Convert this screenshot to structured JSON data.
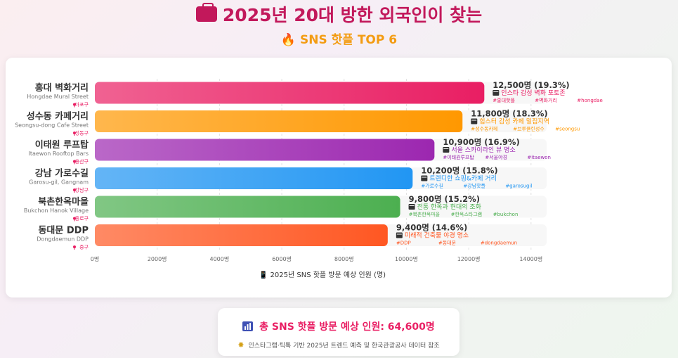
{
  "title": "2025년 20대 방한 외국인이 찾는",
  "subtitle": "SNS 핫플 TOP 6",
  "title_icon": "briefcase-icon",
  "subtitle_icon": "fire-icon",
  "summary": {
    "total_label": "총 SNS 핫플 방문 예상 인원: 64,600명",
    "source": "인스타그램·틱톡 기반 2025년 트렌드 예측 및 한국관광공사 데이터 참조"
  },
  "chart_data": {
    "type": "bar",
    "orientation": "horizontal",
    "xlabel": "2025년 SNS 핫플 방문 예상 인원 (명)",
    "xlim": [
      0,
      14500
    ],
    "xticks": [
      0,
      2000,
      4000,
      6000,
      8000,
      10000,
      12000,
      14000
    ],
    "xtick_labels": [
      "0명",
      "2000명",
      "4000명",
      "6000명",
      "8000명",
      "10000명",
      "12000명",
      "14000명"
    ],
    "grid": true,
    "items": [
      {
        "name": "홍대 벽화거리",
        "en": "Hongdae Mural Street",
        "district": "마포구",
        "value": 12500,
        "value_label": "12,500명 (19.3%)",
        "desc": "인스타 감성 벽화 포토존",
        "tags": [
          "#홍대핫플",
          "#벽화거리",
          "#hongdae"
        ],
        "color": "#e91e63",
        "color2": "#f06292"
      },
      {
        "name": "성수동 카페거리",
        "en": "Seongsu-dong Cafe Street",
        "district": "성동구",
        "value": 11800,
        "value_label": "11,800명 (18.3%)",
        "desc": "힙스터 감성 카페 밀집지역",
        "tags": [
          "#성수동카페",
          "#브루클린성수",
          "#seongsu"
        ],
        "color": "#ff9800",
        "color2": "#ffb74d"
      },
      {
        "name": "이태원 루프탑",
        "en": "Itaewon Rooftop Bars",
        "district": "용산구",
        "value": 10900,
        "value_label": "10,900명 (16.9%)",
        "desc": "서울 스카이라인 뷰 명소",
        "tags": [
          "#이태원루프탑",
          "#서울야경",
          "#itaewon"
        ],
        "color": "#9c27b0",
        "color2": "#ba68c8"
      },
      {
        "name": "강남 가로수길",
        "en": "Garosu-gil, Gangnam",
        "district": "강남구",
        "value": 10200,
        "value_label": "10,200명 (15.8%)",
        "desc": "트렌디한 쇼핑&카페 거리",
        "tags": [
          "#가로수길",
          "#강남핫플",
          "#garosugil"
        ],
        "color": "#2196f3",
        "color2": "#64b5f6"
      },
      {
        "name": "북촌한옥마을",
        "en": "Bukchon Hanok Village",
        "district": "종로구",
        "value": 9800,
        "value_label": "9,800명 (15.2%)",
        "desc": "전통 한옥과 현대의 조화",
        "tags": [
          "#북촌한옥마을",
          "#한옥스타그램",
          "#bukchon"
        ],
        "color": "#4caf50",
        "color2": "#81c784"
      },
      {
        "name": "동대문 DDP",
        "en": "Dongdaemun DDP",
        "district": "중구",
        "value": 9400,
        "value_label": "9,400명 (14.6%)",
        "desc": "미래적 건축물 야경 명소",
        "tags": [
          "#DDP",
          "#동대문",
          "#dongdaemun"
        ],
        "color": "#ff5722",
        "color2": "#ff8a65"
      }
    ]
  }
}
